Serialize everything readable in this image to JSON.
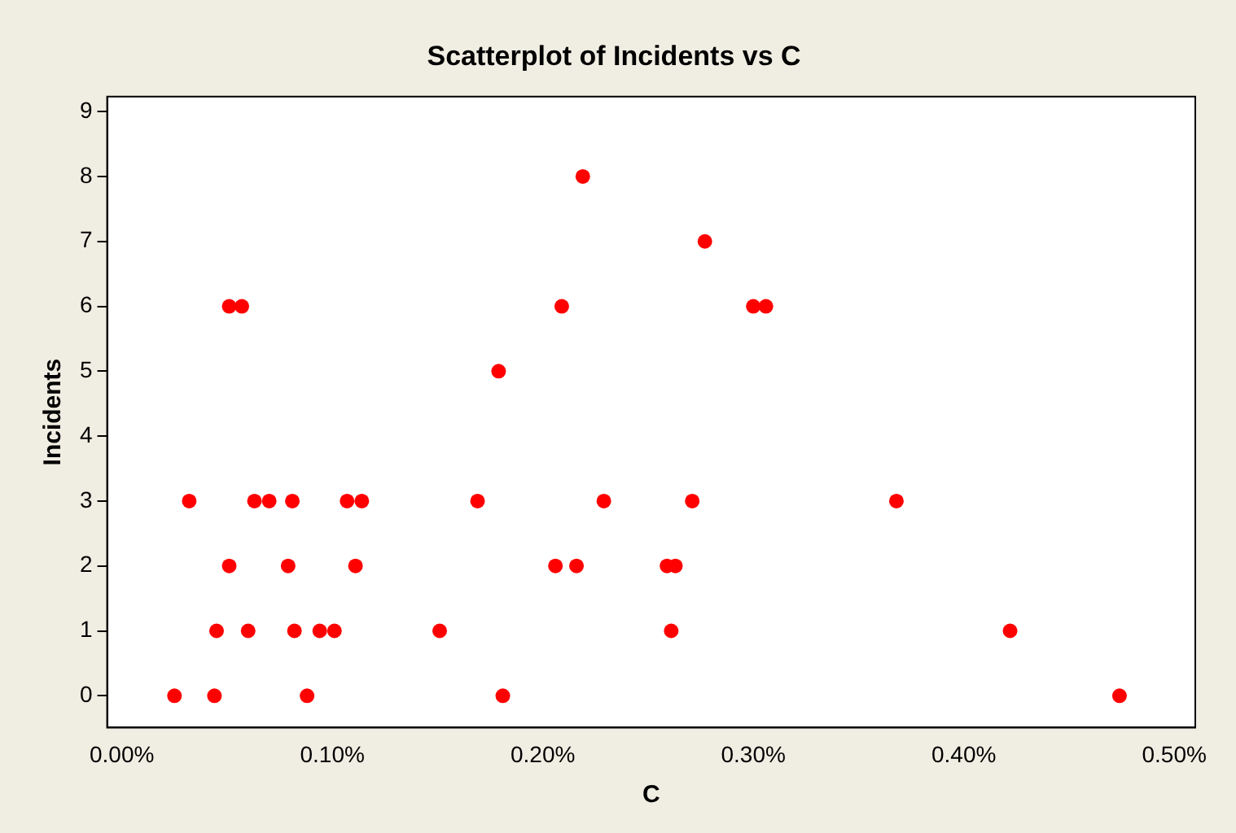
{
  "chart_data": {
    "type": "scatter",
    "title": "Scatterplot of Incidents vs C",
    "xlabel": "C",
    "ylabel": "Incidents",
    "x": [
      0.025,
      0.044,
      0.088,
      0.181,
      0.474,
      0.045,
      0.06,
      0.082,
      0.094,
      0.101,
      0.151,
      0.261,
      0.422,
      0.051,
      0.079,
      0.111,
      0.206,
      0.216,
      0.259,
      0.263,
      0.032,
      0.063,
      0.07,
      0.081,
      0.107,
      0.114,
      0.169,
      0.229,
      0.271,
      0.368,
      0.179,
      0.051,
      0.057,
      0.209,
      0.3,
      0.306,
      0.277,
      0.219
    ],
    "series": [
      {
        "color": "#ff0000",
        "values": [
          0,
          0,
          0,
          0,
          0,
          1,
          1,
          1,
          1,
          1,
          1,
          1,
          1,
          2,
          2,
          2,
          2,
          2,
          2,
          2,
          3,
          3,
          3,
          3,
          3,
          3,
          3,
          3,
          3,
          3,
          5,
          6,
          6,
          6,
          6,
          6,
          7,
          8
        ]
      }
    ],
    "xlim": [
      -0.007,
      0.51
    ],
    "ylim": [
      -0.49,
      9.23
    ],
    "xticks": [
      {
        "value": 0,
        "label": "0.00%"
      },
      {
        "value": 0.1,
        "label": "0.10%"
      },
      {
        "value": 0.2,
        "label": "0.20%"
      },
      {
        "value": 0.3,
        "label": "0.30%"
      },
      {
        "value": 0.4,
        "label": "0.40%"
      },
      {
        "value": 0.5,
        "label": "0.50%"
      }
    ],
    "yticks": [
      0,
      1,
      2,
      3,
      4,
      5,
      6,
      7,
      8,
      9
    ],
    "grid": false,
    "legend": false,
    "marker": "circle"
  }
}
